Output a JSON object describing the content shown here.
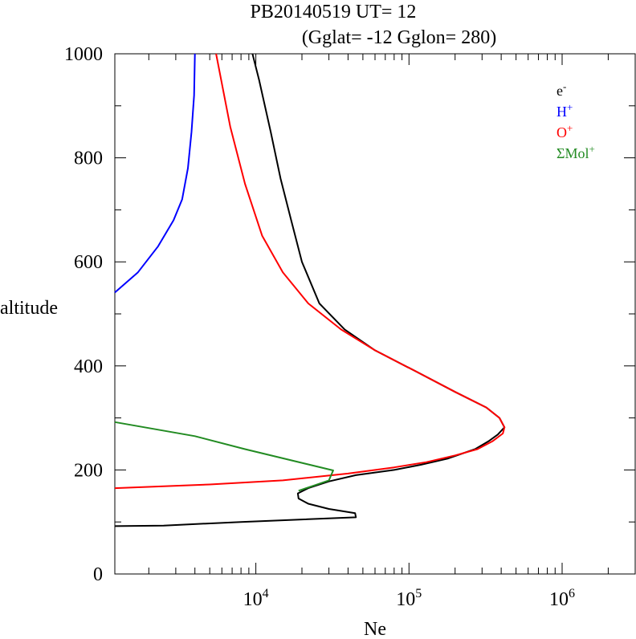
{
  "chart_data": {
    "type": "line",
    "title": "PB20140519   UT=  12",
    "subtitle": "(Gglat= -12   Gglon=  280)",
    "xlabel": "Ne",
    "ylabel": "altitude",
    "xscale": "log",
    "xlim": [
      1200,
      3000000
    ],
    "ylim": [
      0,
      1000
    ],
    "x_ticks": [
      {
        "base": "10",
        "exp": "4",
        "value": 10000
      },
      {
        "base": "10",
        "exp": "5",
        "value": 100000
      },
      {
        "base": "10",
        "exp": "6",
        "value": 1000000
      }
    ],
    "y_ticks": [
      "0",
      "200",
      "400",
      "600",
      "800",
      "1000"
    ],
    "y_tick_values": [
      0,
      200,
      400,
      600,
      800,
      1000
    ],
    "legend_position": "top-right",
    "series": [
      {
        "name": "e-",
        "label_base": "e",
        "label_sup": "-",
        "color": "#000000",
        "points": [
          [
            1200,
            92
          ],
          [
            2500,
            93
          ],
          [
            8000,
            100
          ],
          [
            45000,
            109
          ],
          [
            44500,
            117
          ],
          [
            30000,
            125
          ],
          [
            22000,
            135
          ],
          [
            19000,
            145
          ],
          [
            18800,
            155
          ],
          [
            22000,
            165
          ],
          [
            30000,
            178
          ],
          [
            45000,
            190
          ],
          [
            80000,
            200
          ],
          [
            120000,
            210
          ],
          [
            180000,
            222
          ],
          [
            270000,
            240
          ],
          [
            330000,
            255
          ],
          [
            380000,
            268
          ],
          [
            420000,
            282
          ],
          [
            390000,
            300
          ],
          [
            320000,
            320
          ],
          [
            200000,
            350
          ],
          [
            110000,
            390
          ],
          [
            60000,
            430
          ],
          [
            38000,
            470
          ],
          [
            26000,
            520
          ],
          [
            20000,
            600
          ],
          [
            17000,
            680
          ],
          [
            14500,
            760
          ],
          [
            12500,
            850
          ],
          [
            10500,
            950
          ],
          [
            9500,
            1000
          ]
        ]
      },
      {
        "name": "H+",
        "label_base": "H",
        "label_sup": "+",
        "color": "#0000ff",
        "points": [
          [
            1200,
            541
          ],
          [
            1700,
            580
          ],
          [
            2300,
            630
          ],
          [
            2900,
            680
          ],
          [
            3300,
            720
          ],
          [
            3600,
            780
          ],
          [
            3800,
            850
          ],
          [
            3950,
            920
          ],
          [
            4000,
            1000
          ]
        ]
      },
      {
        "name": "O+",
        "label_base": "O",
        "label_sup": "+",
        "color": "#ff0000",
        "points": [
          [
            1200,
            165
          ],
          [
            5000,
            172
          ],
          [
            15000,
            180
          ],
          [
            40000,
            193
          ],
          [
            80000,
            205
          ],
          [
            130000,
            215
          ],
          [
            200000,
            228
          ],
          [
            280000,
            240
          ],
          [
            350000,
            255
          ],
          [
            410000,
            270
          ],
          [
            420000,
            282
          ],
          [
            390000,
            300
          ],
          [
            320000,
            320
          ],
          [
            200000,
            350
          ],
          [
            110000,
            390
          ],
          [
            60000,
            430
          ],
          [
            36000,
            470
          ],
          [
            22000,
            520
          ],
          [
            15000,
            580
          ],
          [
            11000,
            650
          ],
          [
            8500,
            750
          ],
          [
            6800,
            860
          ],
          [
            5500,
            1000
          ]
        ]
      },
      {
        "name": "ΣMol+",
        "label_base": "ΣMol",
        "label_sup": "+",
        "color": "#228b22",
        "points": [
          [
            1200,
            292
          ],
          [
            4000,
            265
          ],
          [
            8500,
            240
          ],
          [
            32000,
            199
          ],
          [
            30000,
            180
          ],
          [
            24000,
            170
          ],
          [
            19000,
            160
          ]
        ]
      }
    ]
  }
}
